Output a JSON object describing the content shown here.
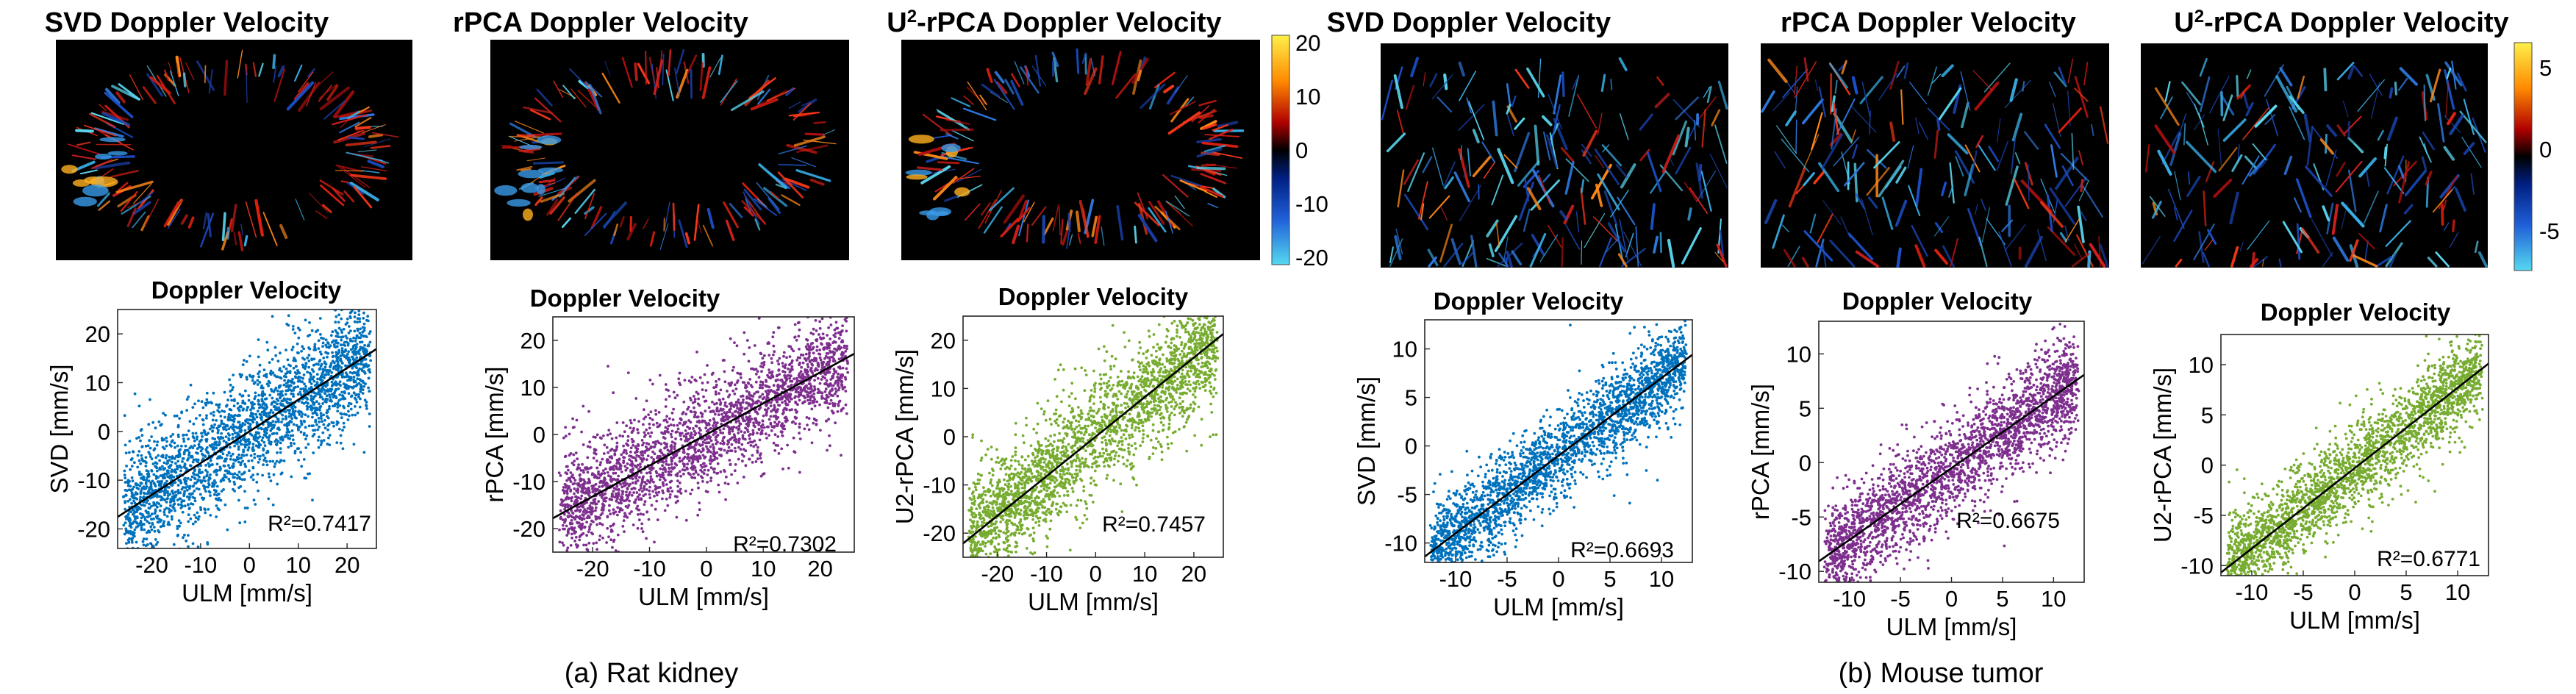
{
  "colors": {
    "svd": "#0072bd",
    "rpca": "#7e2f8e",
    "u2rpca": "#77ac30",
    "fit": "#000000",
    "map_bg": "#0a0000"
  },
  "captions": [
    "(a) Rat kidney",
    "(b) Mouse tumor"
  ],
  "chart_data": [
    {
      "type": "scatter",
      "group": "rat",
      "panel_title": "Doppler Velocity",
      "image_title_main": "SVD Doppler Velocity",
      "image_title_sup": "",
      "xlabel": "ULM [mm/s]",
      "ylabel": "SVD [mm/s]",
      "xlim": [
        -27,
        26
      ],
      "ylim": [
        -24,
        25
      ],
      "xticks": [
        -20,
        -10,
        0,
        10,
        20
      ],
      "yticks": [
        -20,
        -10,
        0,
        10,
        20
      ],
      "r2": "R²=0.7417",
      "fit": {
        "slope": 0.65,
        "intercept": 0
      },
      "spread": 6,
      "series_color": "#0072bd",
      "colorbar": null
    },
    {
      "type": "scatter",
      "group": "rat",
      "panel_title": "Doppler Velocity",
      "image_title_main": "rPCA Doppler Velocity",
      "image_title_sup": "",
      "xlabel": "ULM [mm/s]",
      "ylabel": "rPCA [mm/s]",
      "xlim": [
        -27,
        26
      ],
      "ylim": [
        -25,
        25
      ],
      "xticks": [
        -20,
        -10,
        0,
        10,
        20
      ],
      "yticks": [
        -20,
        -10,
        0,
        10,
        20
      ],
      "r2": "R²=0.7302",
      "fit": {
        "slope": 0.66,
        "intercept": 0
      },
      "spread": 6,
      "series_color": "#7e2f8e",
      "colorbar": null
    },
    {
      "type": "scatter",
      "group": "rat",
      "panel_title": "Doppler Velocity",
      "image_title_main": "-rPCA Doppler Velocity",
      "image_title_sup": "U2",
      "xlabel": "ULM [mm/s]",
      "ylabel": "U2-rPCA [mm/s]",
      "xlim": [
        -27,
        26
      ],
      "ylim": [
        -25,
        25
      ],
      "xticks": [
        -20,
        -10,
        0,
        10,
        20
      ],
      "yticks": [
        -20,
        -10,
        0,
        10,
        20
      ],
      "r2": "R²=0.7457",
      "fit": {
        "slope": 0.82,
        "intercept": 0
      },
      "spread": 6,
      "series_color": "#77ac30",
      "colorbar": {
        "ticks": [
          "20",
          "10",
          "0",
          "-10",
          "-20"
        ]
      }
    },
    {
      "type": "scatter",
      "group": "tumor",
      "panel_title": "Doppler Velocity",
      "image_title_main": "SVD Doppler Velocity",
      "image_title_sup": "",
      "xlabel": "ULM [mm/s]",
      "ylabel": "SVD [mm/s]",
      "xlim": [
        -13,
        13
      ],
      "ylim": [
        -12,
        13
      ],
      "xticks": [
        -10,
        -5,
        0,
        5,
        10
      ],
      "yticks": [
        -10,
        -5,
        0,
        5,
        10
      ],
      "r2": "R²=0.6693",
      "fit": {
        "slope": 0.8,
        "intercept": -1
      },
      "spread": 2.2,
      "series_color": "#0072bd",
      "colorbar": null
    },
    {
      "type": "scatter",
      "group": "tumor",
      "panel_title": "Doppler Velocity",
      "image_title_main": "rPCA Doppler Velocity",
      "image_title_sup": "",
      "xlabel": "ULM [mm/s]",
      "ylabel": "rPCA [mm/s]",
      "xlim": [
        -13,
        13
      ],
      "ylim": [
        -11,
        13
      ],
      "xticks": [
        -10,
        -5,
        0,
        5,
        10
      ],
      "yticks": [
        -10,
        -5,
        0,
        5,
        10
      ],
      "r2": "R²=0.6675",
      "fit": {
        "slope": 0.66,
        "intercept": -0.5
      },
      "spread": 2.2,
      "series_color": "#7e2f8e",
      "colorbar": null
    },
    {
      "type": "scatter",
      "group": "tumor",
      "panel_title": "Doppler Velocity",
      "image_title_main": "-rPCA Doppler Velocity",
      "image_title_sup": "U2",
      "xlabel": "ULM [mm/s]",
      "ylabel": "U2-rPCA [mm/s]",
      "xlim": [
        -13,
        13
      ],
      "ylim": [
        -11,
        13
      ],
      "xticks": [
        -10,
        -5,
        0,
        5,
        10
      ],
      "yticks": [
        -10,
        -5,
        0,
        5,
        10
      ],
      "r2": "R²=0.6771",
      "fit": {
        "slope": 0.8,
        "intercept": -0.3
      },
      "spread": 2.2,
      "series_color": "#77ac30",
      "colorbar": {
        "ticks": [
          "5",
          "0",
          "-5"
        ]
      }
    }
  ]
}
